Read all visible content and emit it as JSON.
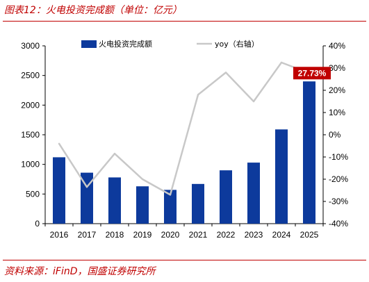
{
  "header": {
    "title": "图表12：火电投资完成额（单位：亿元）"
  },
  "footer": {
    "source": "资料来源：iFinD，国盛证券研究所"
  },
  "colors": {
    "bar": "#0d3a9c",
    "line": "#c8c8c8",
    "accent": "#c00000"
  },
  "chart_data": {
    "type": "bar",
    "categories": [
      "2016",
      "2017",
      "2018",
      "2019",
      "2020",
      "2021",
      "2022",
      "2023",
      "2024",
      "2025"
    ],
    "series": [
      {
        "name": "火电投资完成额",
        "type": "bar",
        "axis": "left",
        "values": [
          1120,
          860,
          780,
          630,
          570,
          670,
          900,
          1030,
          1590,
          2400
        ]
      },
      {
        "name": "yoy（右轴）",
        "type": "line",
        "axis": "right",
        "values": [
          -4.0,
          -23.5,
          -8.5,
          -20.0,
          -27.0,
          18.0,
          28.0,
          15.0,
          32.5,
          27.73
        ]
      }
    ],
    "y_left": {
      "ylim": [
        0,
        3000
      ],
      "ticks": [
        "0",
        "500",
        "1000",
        "1500",
        "2000",
        "2500",
        "3000"
      ]
    },
    "y_right": {
      "ylim": [
        -40,
        40
      ],
      "ticks": [
        "-40%",
        "-30%",
        "-20%",
        "-10%",
        "0%",
        "10%",
        "20%",
        "30%",
        "40%"
      ]
    },
    "annotation": {
      "text": "27.73%",
      "category": "2025",
      "series": "yoy（右轴）"
    },
    "legend": "top-center",
    "grid": false
  }
}
